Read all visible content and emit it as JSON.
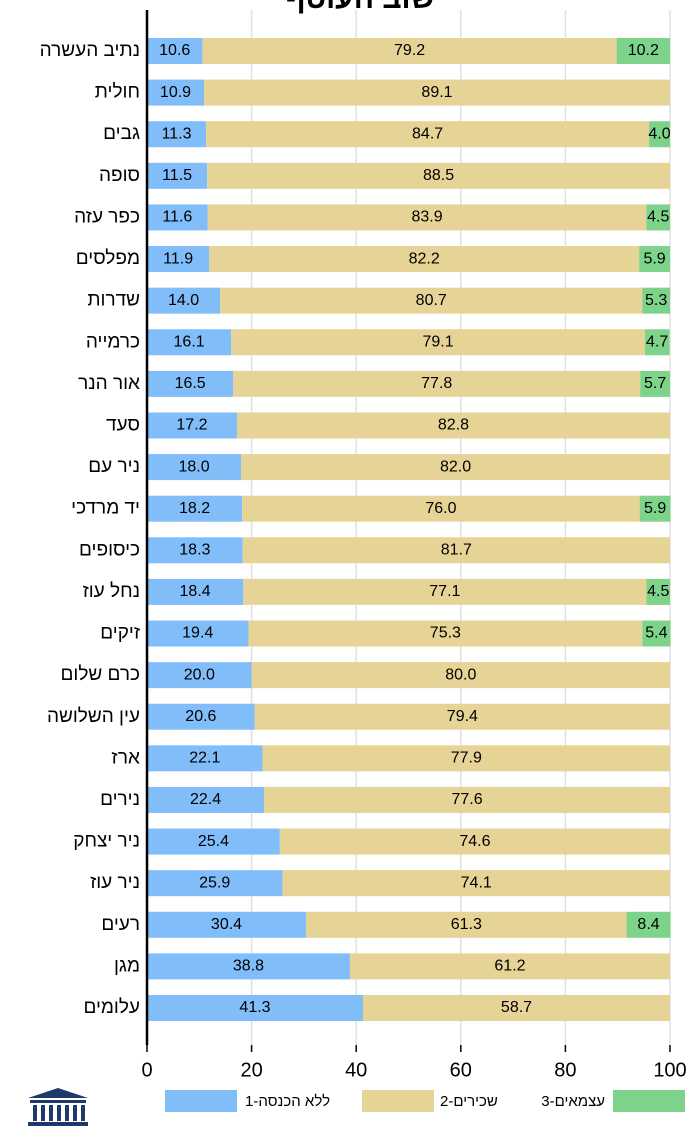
{
  "chart_data": {
    "type": "stacked_barh",
    "title": "שוב העוטף",
    "categories": [
      "נתיב העשרה",
      "חולית",
      "גבים",
      "סופה",
      "כפר עזה",
      "מפלסים",
      "שדרות",
      "כרמייה",
      "אור הנר",
      "סעד",
      "ניר עם",
      "יד מרדכי",
      "כיסופים",
      "נחל עוז",
      "זיקים",
      "כרם שלום",
      "עין השלושה",
      "ארז",
      "נירים",
      "ניר יצחק",
      "ניר עוז",
      "רעים",
      "מגן",
      "עלומים"
    ],
    "series": [
      {
        "name": "ללא הכנסה-1",
        "color": "#80bdf9",
        "values": [
          10.6,
          10.9,
          11.3,
          11.5,
          11.6,
          11.9,
          14.0,
          16.1,
          16.5,
          17.2,
          18.0,
          18.2,
          18.3,
          18.4,
          19.4,
          20.0,
          20.6,
          22.1,
          22.4,
          25.4,
          25.9,
          30.4,
          38.8,
          41.3
        ],
        "value_labels": [
          "10.6",
          "10.9",
          "11.3",
          "11.5",
          "11.6",
          "11.9",
          "14.0",
          "16.1",
          "16.5",
          "17.2",
          "18.0",
          "18.2",
          "18.3",
          "18.4",
          "19.4",
          "20.0",
          "20.6",
          "22.1",
          "22.4",
          "25.4",
          "25.9",
          "30.4",
          "38.8",
          "41.3"
        ]
      },
      {
        "name": "שכירים-2",
        "color": "#e6d396",
        "values": [
          79.2,
          89.1,
          84.7,
          88.5,
          83.9,
          82.2,
          80.7,
          79.1,
          77.8,
          82.8,
          82.0,
          76.0,
          81.7,
          77.1,
          75.3,
          80.0,
          79.4,
          77.9,
          77.6,
          74.6,
          74.1,
          61.3,
          61.2,
          58.7
        ],
        "value_labels": [
          "79.2",
          "89.1",
          "84.7",
          "88.5",
          "83.9",
          "82.2",
          "80.7",
          "79.1",
          "77.8",
          "82.8",
          "82.0",
          "76.0",
          "81.7",
          "77.1",
          "75.3",
          "80.0",
          "79.4",
          "77.9",
          "77.6",
          "74.6",
          "74.1",
          "61.3",
          "61.2",
          "58.7"
        ]
      },
      {
        "name": "עצמאים-3",
        "color": "#7ed38b",
        "values": [
          10.2,
          null,
          4.0,
          null,
          4.5,
          5.9,
          5.3,
          4.7,
          5.7,
          null,
          null,
          5.9,
          null,
          4.5,
          5.4,
          null,
          null,
          null,
          null,
          null,
          null,
          8.4,
          null,
          null
        ],
        "value_labels": [
          "10.2",
          null,
          "4.0",
          null,
          "4.5",
          "5.9",
          "5.3",
          "4.7",
          "5.7",
          null,
          null,
          "5.9",
          null,
          "4.5",
          "5.4",
          null,
          null,
          null,
          null,
          null,
          null,
          "8.4",
          null,
          null
        ]
      }
    ],
    "xlim": [
      0,
      100
    ],
    "xticks": [
      0,
      20,
      40,
      60,
      80,
      100
    ],
    "grid": true
  }
}
